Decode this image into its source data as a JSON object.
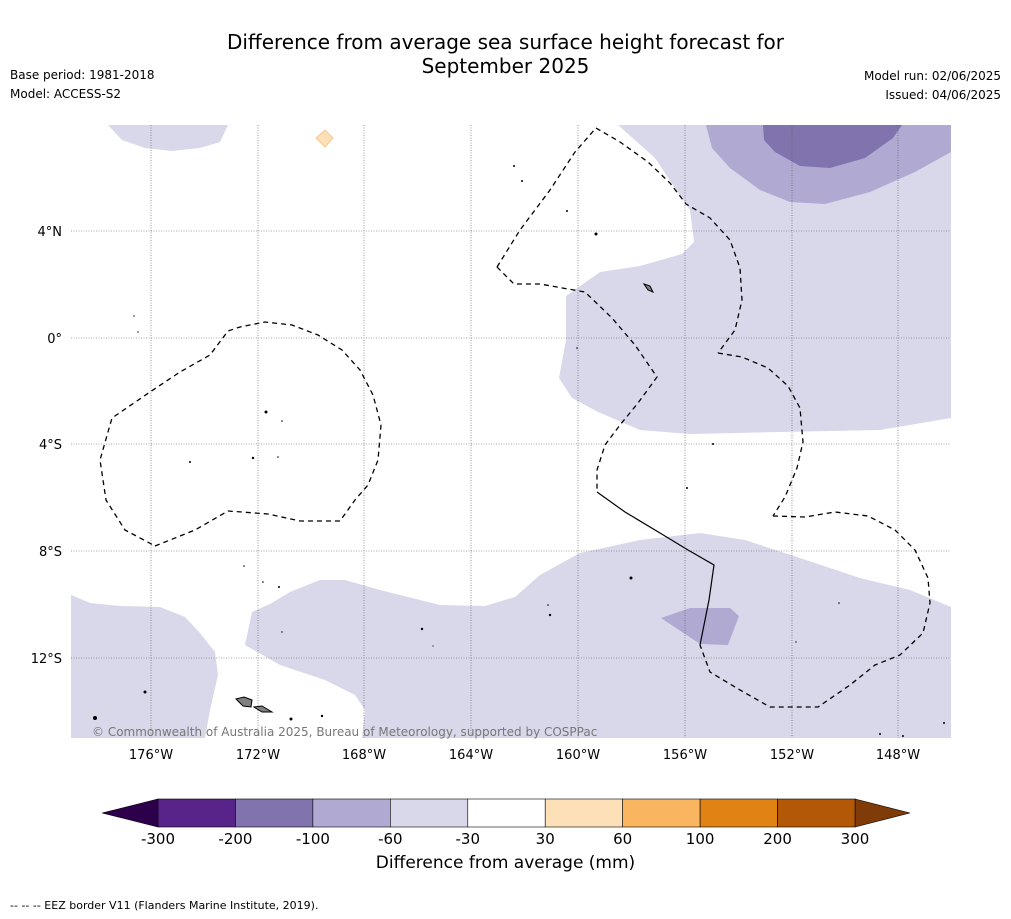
{
  "header": {
    "title_line1": "Difference from average sea surface height forecast for",
    "title_line2": "September 2025",
    "base_period": "Base period: 1981-2018",
    "model": "Model: ACCESS-S2",
    "model_run": "Model run: 02/06/2025",
    "issued": "Issued: 04/06/2025"
  },
  "map": {
    "lat_labels": [
      "4°N",
      "0°",
      "4°S",
      "8°S",
      "12°S"
    ],
    "lon_labels": [
      "176°W",
      "172°W",
      "168°W",
      "164°W",
      "160°W",
      "156°W",
      "152°W",
      "148°W"
    ],
    "copyright": "© Commonwealth of Australia 2025, Bureau of Meteorology, supported by COSPPac",
    "colors": {
      "minus_30_to_60": "#d8d8ea",
      "minus_60_to_100": "#b0a9d2",
      "minus_100_to_200": "#8073ae",
      "plus_30_to_60": "#fde0b8",
      "land": "#808080",
      "coast": "#000000"
    }
  },
  "colorbar": {
    "title": "Difference from average (mm)",
    "ticks": [
      "-300",
      "-200",
      "-100",
      "-60",
      "-30",
      "30",
      "60",
      "100",
      "200",
      "300"
    ],
    "bins": [
      {
        "range": "-200 to -300",
        "color": "#58248a"
      },
      {
        "range": "-100 to -200",
        "color": "#8073ae"
      },
      {
        "range": "-60 to -100",
        "color": "#b0a9d2"
      },
      {
        "range": "-30 to -60",
        "color": "#d8d8ea"
      },
      {
        "range": "-30 to 30",
        "color": "#ffffff"
      },
      {
        "range": "30 to 60",
        "color": "#fde0b8"
      },
      {
        "range": "60 to 100",
        "color": "#f9b55f"
      },
      {
        "range": "100 to 200",
        "color": "#e08214"
      },
      {
        "range": "200 to 300",
        "color": "#b35807"
      }
    ],
    "under_color": "#2d004b",
    "over_color": "#7f3b08"
  },
  "footnote": "-- -- -- EEZ border V11 (Flanders Marine Institute, 2019)."
}
